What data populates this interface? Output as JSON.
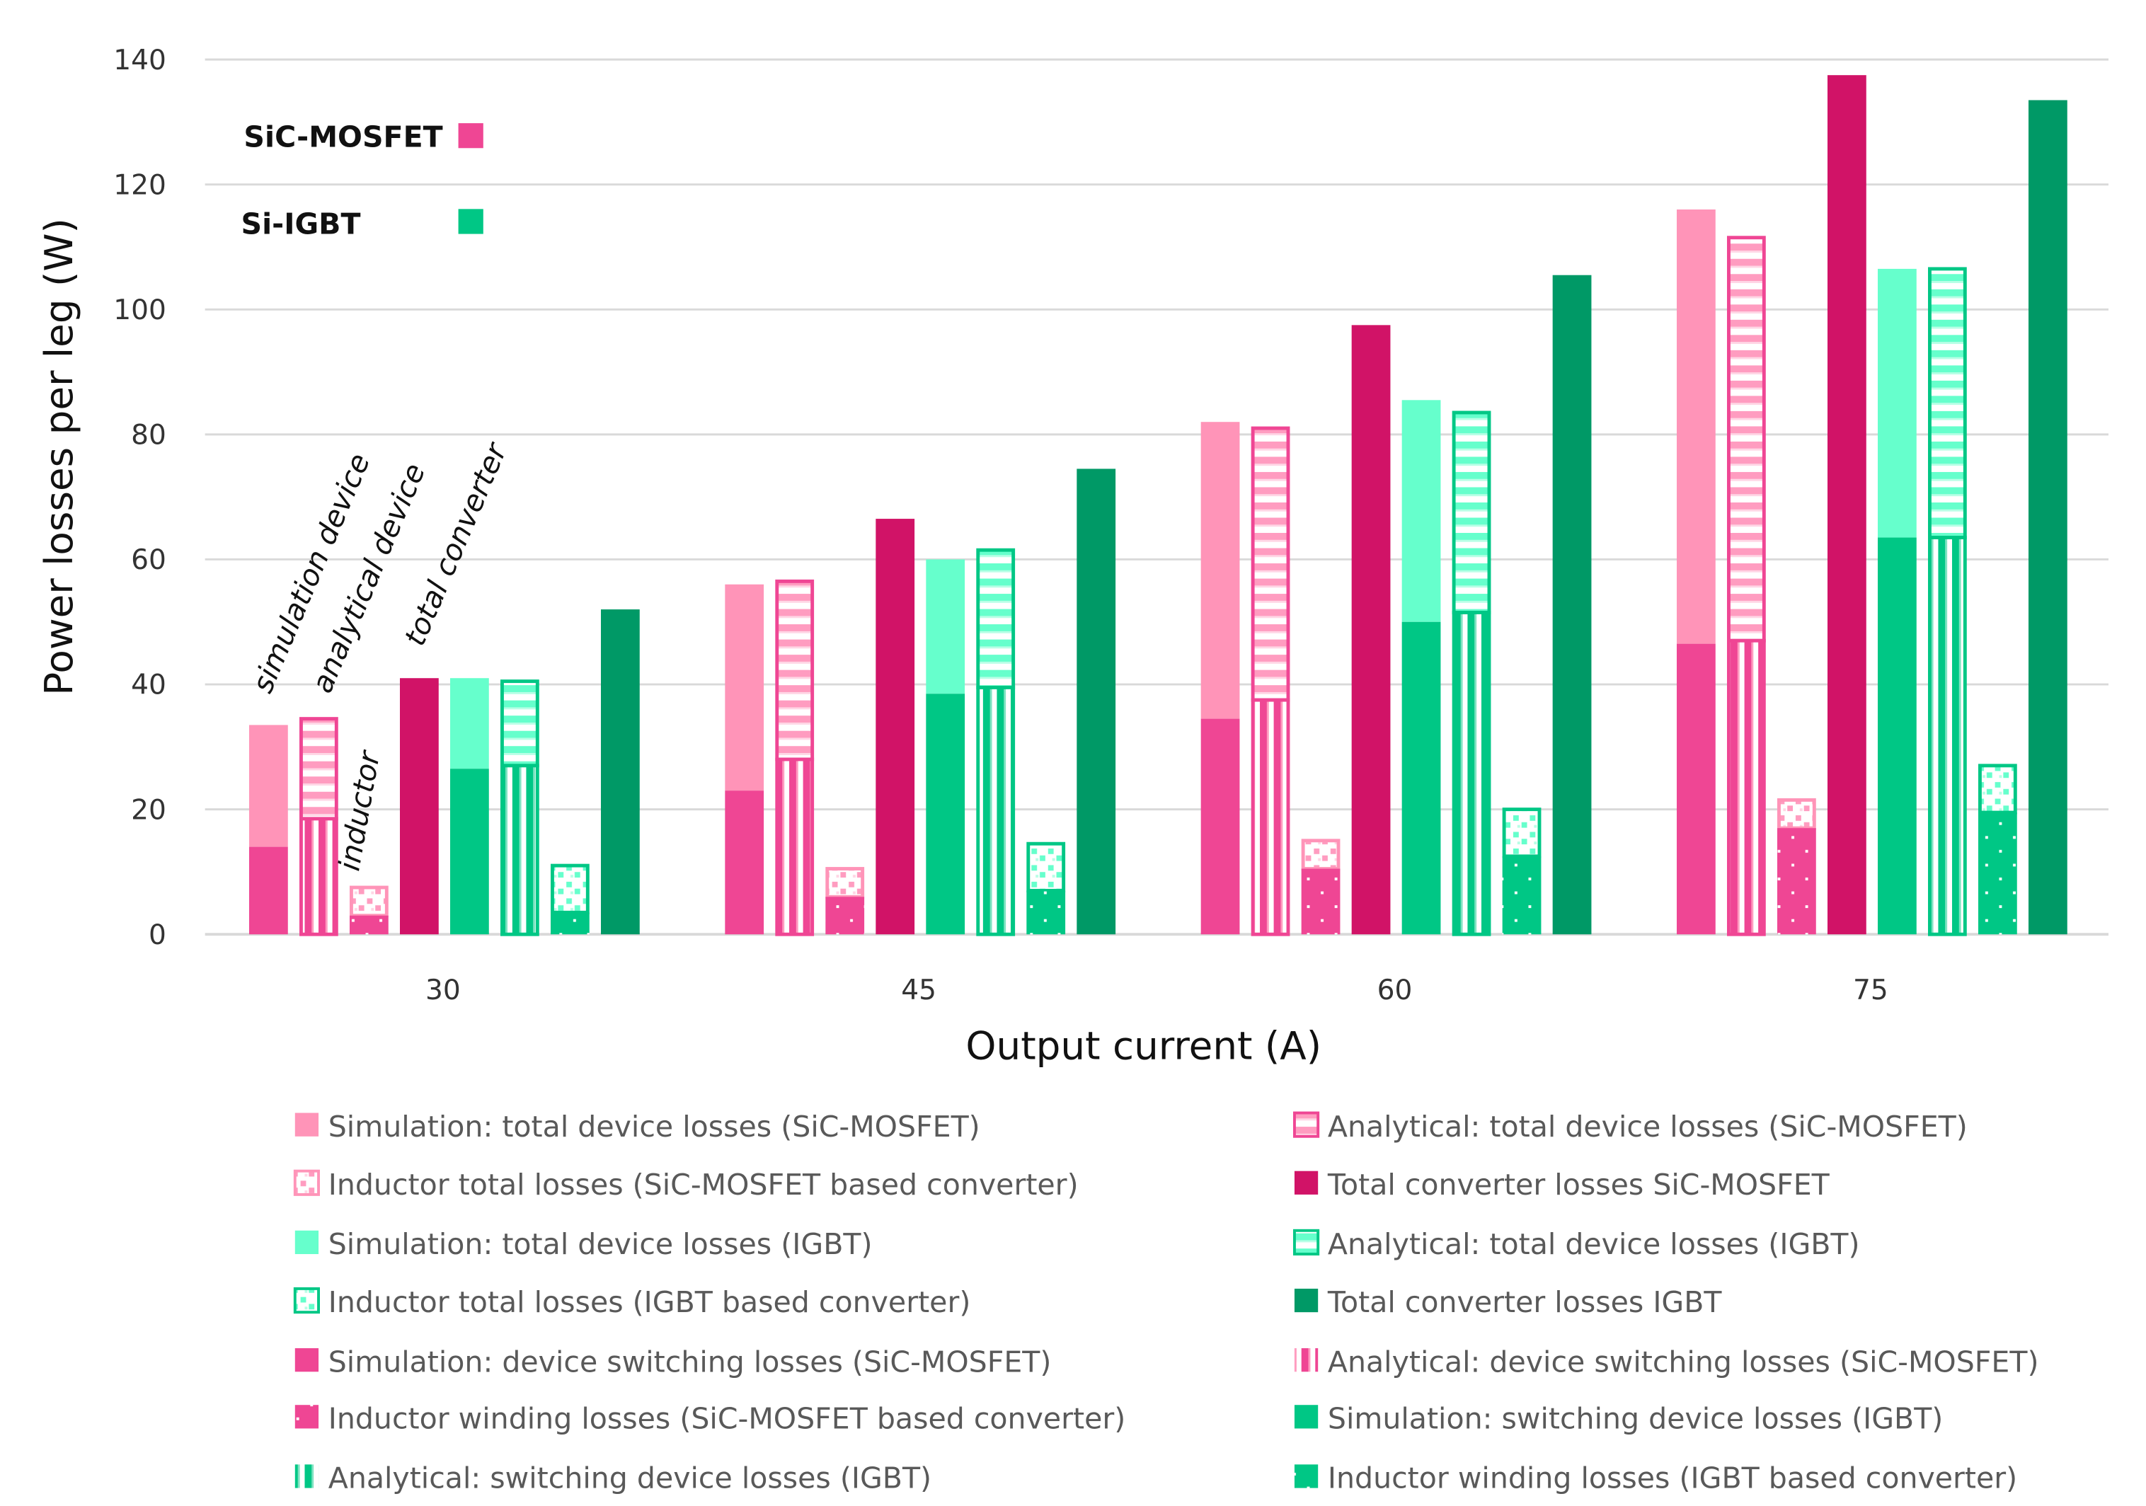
{
  "chart_data": {
    "type": "bar",
    "title": "",
    "xlabel": "Output current (A)",
    "ylabel": "Power losses per leg (W)",
    "ylim": [
      0,
      140
    ],
    "yticks": [
      0,
      20,
      40,
      60,
      80,
      100,
      120,
      140
    ],
    "grid": true,
    "categories": [
      "30",
      "45",
      "60",
      "75"
    ],
    "colors": {
      "sic_light": "#FF94B8",
      "sic_mid": "#EF4694",
      "sic_dark": "#D11367",
      "igbt_light": "#66FFCC",
      "igbt_mid": "#00C785",
      "igbt_dark": "#009966"
    },
    "series": [
      {
        "name": "Simulation: total device losses (SiC-MOSFET)",
        "values": [
          33.5,
          56,
          82,
          116
        ]
      },
      {
        "name": "Simulation: device switching losses (SiC-MOSFET)",
        "values": [
          14,
          23,
          34.5,
          46.5
        ]
      },
      {
        "name": "Analytical: total device losses (SiC-MOSFET)",
        "values": [
          34.5,
          56.5,
          81,
          111.5
        ]
      },
      {
        "name": "Analytical: device switching losses (SiC-MOSFET)",
        "values": [
          18.5,
          28,
          37.5,
          47
        ]
      },
      {
        "name": "Inductor total losses (SiC-MOSFET based converter)",
        "values": [
          7.5,
          10.5,
          15,
          21.5
        ]
      },
      {
        "name": "Inductor winding losses (SiC-MOSFET based converter)",
        "values": [
          3,
          6,
          10.5,
          17
        ]
      },
      {
        "name": "Total converter losses SiC-MOSFET",
        "values": [
          41,
          66.5,
          97.5,
          137.5
        ]
      },
      {
        "name": "Simulation: total device losses (IGBT)",
        "values": [
          41,
          60,
          85.5,
          106.5
        ]
      },
      {
        "name": "Simulation: switching device losses (IGBT)",
        "values": [
          26.5,
          38.5,
          50,
          63.5
        ]
      },
      {
        "name": "Analytical: total device losses (IGBT)",
        "values": [
          40.5,
          61.5,
          83.5,
          106.5
        ]
      },
      {
        "name": "Analytical: switching device losses (IGBT)",
        "values": [
          27,
          39.5,
          51.5,
          63.5
        ]
      },
      {
        "name": "Inductor total losses (IGBT based converter)",
        "values": [
          11,
          14.5,
          20,
          27
        ]
      },
      {
        "name": "Inductor winding losses (IGBT based converter)",
        "values": [
          3.5,
          7,
          12.5,
          19.5
        ]
      },
      {
        "name": "Total converter losses IGBT",
        "values": [
          52,
          74.5,
          105.5,
          133.5
        ]
      }
    ],
    "legend_left": [
      "Simulation: total device losses (SiC-MOSFET)",
      "Inductor total losses (SiC-MOSFET based converter)",
      "Simulation: total device losses (IGBT)",
      "Inductor total losses (IGBT based converter)",
      "Simulation: device switching losses (SiC-MOSFET)",
      "Inductor winding losses (SiC-MOSFET based converter)",
      "Analytical: switching device losses (IGBT)"
    ],
    "legend_right": [
      "Analytical: total device losses (SiC-MOSFET)",
      "Total converter losses SiC-MOSFET",
      "Analytical: total device losses (IGBT)",
      "Total converter losses IGBT",
      "Analytical: device switching losses (SiC-MOSFET)",
      "Simulation: switching device losses (IGBT)",
      "Inductor winding losses (IGBT based converter)"
    ],
    "legend_placement": "bottom",
    "annotations": [
      "simulation device",
      "analytical device",
      "total converter",
      "inductor"
    ],
    "device_key": [
      "SiC-MOSFET",
      "Si-IGBT"
    ]
  }
}
